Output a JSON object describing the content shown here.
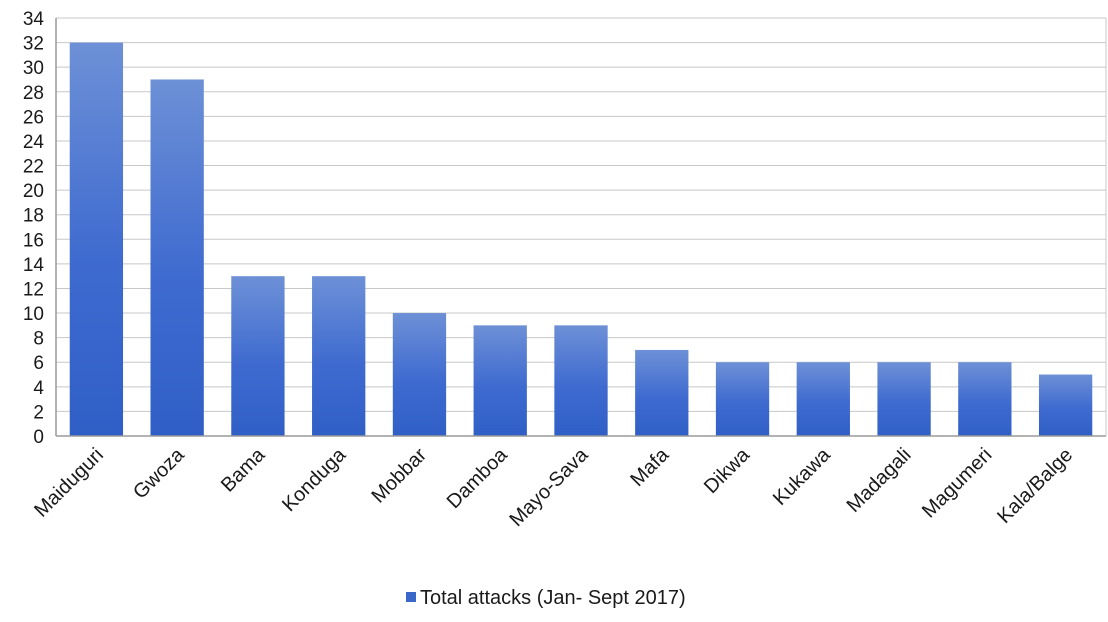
{
  "chart_data": {
    "type": "bar",
    "categories": [
      "Maiduguri",
      "Gwoza",
      "Bama",
      "Konduga",
      "Mobbar",
      "Damboa",
      "Mayo-Sava",
      "Mafa",
      "Dikwa",
      "Kukawa",
      "Madagali",
      "Magumeri",
      "Kala/Balge"
    ],
    "series": [
      {
        "name": "Total attacks (Jan- Sept 2017)",
        "values": [
          32,
          29,
          13,
          13,
          10,
          9,
          9,
          7,
          6,
          6,
          6,
          6,
          5
        ],
        "color": "#3a68c9"
      }
    ],
    "title": "",
    "xlabel": "",
    "ylabel": "",
    "ylim": [
      0,
      34
    ],
    "ytick_step": 2,
    "grid": true,
    "legend": "bottom-center"
  }
}
